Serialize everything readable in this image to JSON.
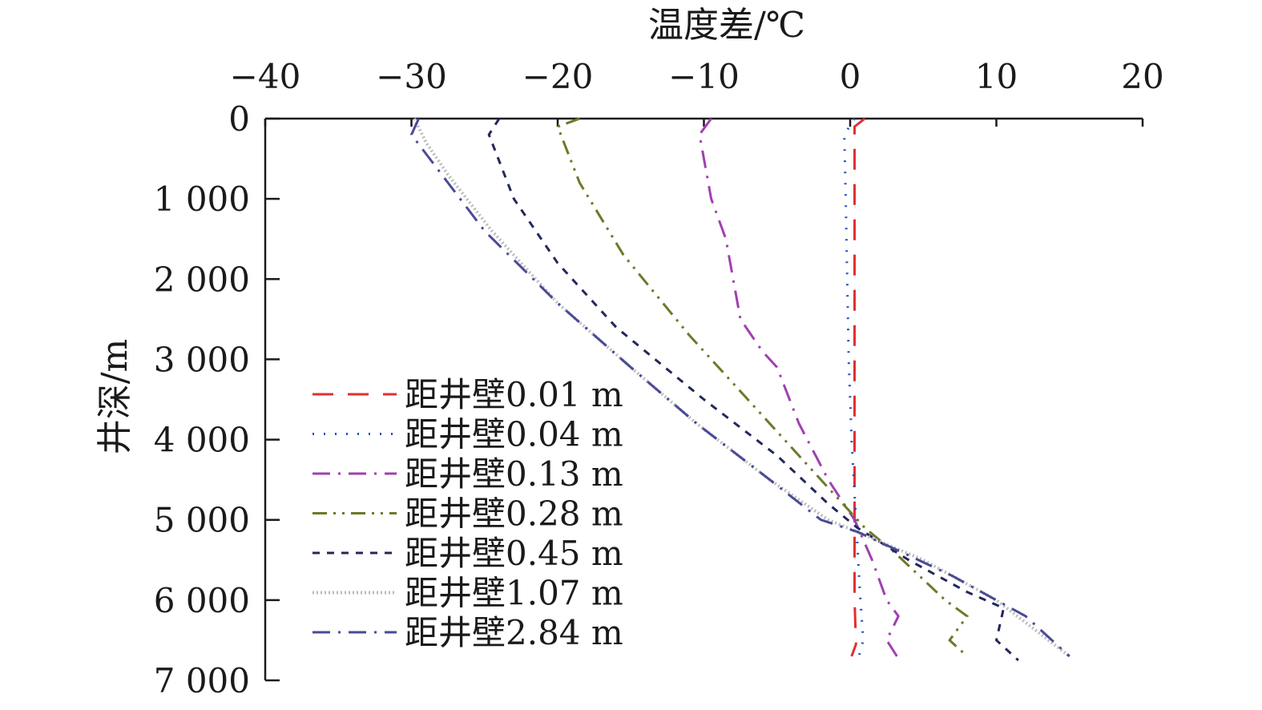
{
  "chart_data": {
    "type": "line",
    "title": "",
    "xlabel": "温度差/℃",
    "ylabel": "井深/m",
    "x_axis_position": "top",
    "y_axis_inverted": true,
    "xlim": [
      -40,
      20
    ],
    "ylim": [
      0,
      7000
    ],
    "x_ticks": [
      -40,
      -30,
      -20,
      -10,
      0,
      10,
      20
    ],
    "x_tick_labels": [
      "−40",
      "−30",
      "−20",
      "−10",
      "0",
      "10",
      "20"
    ],
    "y_ticks": [
      0,
      1000,
      2000,
      3000,
      4000,
      5000,
      6000,
      7000
    ],
    "y_tick_labels": [
      "0",
      "1 000",
      "2 000",
      "3 000",
      "4 000",
      "5 000",
      "6 000",
      "7 000"
    ],
    "grid": false,
    "legend_position": "left-middle",
    "series": [
      {
        "name": "距井壁0.01 m",
        "color": "#e03030",
        "dash": "long-dash",
        "points": [
          [
            1.0,
            0
          ],
          [
            0.3,
            100
          ],
          [
            0.3,
            1000
          ],
          [
            0.3,
            2000
          ],
          [
            0.3,
            3000
          ],
          [
            0.3,
            4000
          ],
          [
            0.3,
            5000
          ],
          [
            0.3,
            6000
          ],
          [
            0.4,
            6550
          ],
          [
            0.1,
            6700
          ]
        ]
      },
      {
        "name": "距井壁0.04 m",
        "color": "#2050c0",
        "dash": "dot",
        "points": [
          [
            0.3,
            0
          ],
          [
            -0.4,
            200
          ],
          [
            -0.3,
            1000
          ],
          [
            -0.2,
            2000
          ],
          [
            -0.1,
            3000
          ],
          [
            0.1,
            4000
          ],
          [
            0.4,
            5000
          ],
          [
            0.7,
            6000
          ],
          [
            0.9,
            6500
          ],
          [
            0.6,
            6700
          ]
        ]
      },
      {
        "name": "距井壁0.13 m",
        "color": "#a040b0",
        "dash": "dash-dot",
        "points": [
          [
            -9.5,
            0
          ],
          [
            -10.3,
            200
          ],
          [
            -9.5,
            1000
          ],
          [
            -8.5,
            1500
          ],
          [
            -7.5,
            2500
          ],
          [
            -6,
            2900
          ],
          [
            -5,
            3100
          ],
          [
            -3.5,
            3800
          ],
          [
            -1.5,
            4500
          ],
          [
            0.3,
            5000
          ],
          [
            1.5,
            5500
          ],
          [
            2.5,
            6000
          ],
          [
            3.3,
            6200
          ],
          [
            2.5,
            6500
          ],
          [
            3.2,
            6700
          ]
        ]
      },
      {
        "name": "距井壁0.28 m",
        "color": "#6b7a2a",
        "dash": "dash-dot-dot",
        "points": [
          [
            -18.5,
            0
          ],
          [
            -20,
            100
          ],
          [
            -18.5,
            800
          ],
          [
            -15.5,
            1700
          ],
          [
            -11,
            2700
          ],
          [
            -7,
            3500
          ],
          [
            -3.5,
            4200
          ],
          [
            -0.5,
            4800
          ],
          [
            1,
            5100
          ],
          [
            3,
            5400
          ],
          [
            6.5,
            6000
          ],
          [
            8,
            6200
          ],
          [
            6.8,
            6500
          ],
          [
            8,
            6700
          ]
        ]
      },
      {
        "name": "距井壁0.45 m",
        "color": "#22285a",
        "dash": "short-dash",
        "points": [
          [
            -24,
            0
          ],
          [
            -24.7,
            200
          ],
          [
            -23,
            1000
          ],
          [
            -20,
            1800
          ],
          [
            -16,
            2600
          ],
          [
            -10,
            3500
          ],
          [
            -5,
            4200
          ],
          [
            -1.5,
            4800
          ],
          [
            0.5,
            5100
          ],
          [
            4,
            5500
          ],
          [
            8,
            5900
          ],
          [
            10.5,
            6100
          ],
          [
            10,
            6500
          ],
          [
            11.5,
            6750
          ]
        ]
      },
      {
        "name": "距井壁1.07 m",
        "color": "#bbbbbb",
        "dash": "dense-dot",
        "points": [
          [
            -29.8,
            0
          ],
          [
            -29,
            300
          ],
          [
            -27.5,
            700
          ],
          [
            -24.5,
            1400
          ],
          [
            -20,
            2300
          ],
          [
            -15,
            3100
          ],
          [
            -10.5,
            3800
          ],
          [
            -5.5,
            4500
          ],
          [
            -1.5,
            5000
          ],
          [
            0.5,
            5150
          ],
          [
            5,
            5500
          ],
          [
            10,
            6000
          ],
          [
            15,
            6700
          ]
        ]
      },
      {
        "name": "距井壁2.84 m",
        "color": "#4a4a98",
        "dash": "dash-dot",
        "points": [
          [
            -29.5,
            0
          ],
          [
            -30,
            200
          ],
          [
            -27.5,
            800
          ],
          [
            -25,
            1400
          ],
          [
            -20,
            2300
          ],
          [
            -15,
            3100
          ],
          [
            -10.5,
            3800
          ],
          [
            -5.5,
            4500
          ],
          [
            -2,
            5000
          ],
          [
            0.5,
            5150
          ],
          [
            3.5,
            5400
          ],
          [
            7,
            5700
          ],
          [
            10,
            6000
          ],
          [
            12,
            6200
          ],
          [
            15,
            6700
          ]
        ]
      }
    ]
  }
}
